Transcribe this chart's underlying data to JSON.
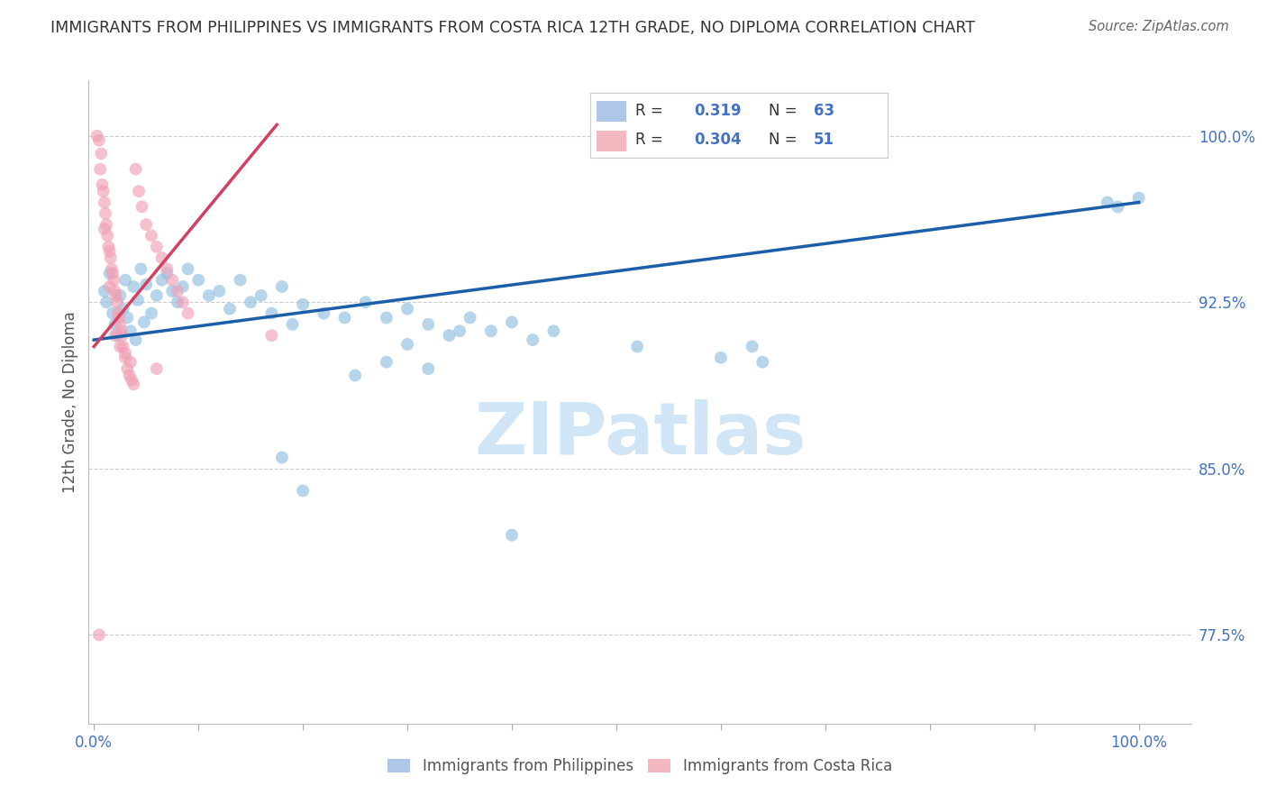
{
  "title": "IMMIGRANTS FROM PHILIPPINES VS IMMIGRANTS FROM COSTA RICA 12TH GRADE, NO DIPLOMA CORRELATION CHART",
  "source": "Source: ZipAtlas.com",
  "ylabel": "12th Grade, No Diploma",
  "ytick_vals": [
    0.775,
    0.85,
    0.925,
    1.0
  ],
  "ytick_labels": [
    "77.5%",
    "85.0%",
    "92.5%",
    "100.0%"
  ],
  "legend_entries": [
    {
      "label": "Immigrants from Philippines",
      "color": "#aec6e8",
      "R": "0.319",
      "N": "63"
    },
    {
      "label": "Immigrants from Costa Rica",
      "color": "#f4b8c1",
      "R": "0.304",
      "N": "51"
    }
  ],
  "blue_scatter_x": [
    0.01,
    0.012,
    0.015,
    0.018,
    0.02,
    0.022,
    0.025,
    0.028,
    0.03,
    0.032,
    0.035,
    0.038,
    0.04,
    0.042,
    0.045,
    0.048,
    0.05,
    0.055,
    0.06,
    0.065,
    0.07,
    0.075,
    0.08,
    0.085,
    0.09,
    0.1,
    0.11,
    0.12,
    0.13,
    0.14,
    0.15,
    0.16,
    0.17,
    0.18,
    0.19,
    0.2,
    0.22,
    0.24,
    0.26,
    0.28,
    0.3,
    0.32,
    0.34,
    0.36,
    0.38,
    0.4,
    0.42,
    0.44,
    0.3,
    0.35,
    0.32,
    0.28,
    0.25,
    0.52,
    0.6,
    0.63,
    0.64,
    0.97,
    0.98,
    1.0,
    0.18,
    0.2,
    0.4
  ],
  "blue_scatter_y": [
    0.93,
    0.925,
    0.938,
    0.92,
    0.915,
    0.91,
    0.928,
    0.922,
    0.935,
    0.918,
    0.912,
    0.932,
    0.908,
    0.926,
    0.94,
    0.916,
    0.933,
    0.92,
    0.928,
    0.935,
    0.938,
    0.93,
    0.925,
    0.932,
    0.94,
    0.935,
    0.928,
    0.93,
    0.922,
    0.935,
    0.925,
    0.928,
    0.92,
    0.932,
    0.915,
    0.924,
    0.92,
    0.918,
    0.925,
    0.918,
    0.922,
    0.915,
    0.91,
    0.918,
    0.912,
    0.916,
    0.908,
    0.912,
    0.906,
    0.912,
    0.895,
    0.898,
    0.892,
    0.905,
    0.9,
    0.905,
    0.898,
    0.97,
    0.968,
    0.972,
    0.855,
    0.84,
    0.82
  ],
  "pink_scatter_x": [
    0.003,
    0.005,
    0.006,
    0.007,
    0.008,
    0.009,
    0.01,
    0.011,
    0.012,
    0.013,
    0.014,
    0.015,
    0.016,
    0.017,
    0.018,
    0.019,
    0.02,
    0.021,
    0.022,
    0.023,
    0.024,
    0.025,
    0.026,
    0.027,
    0.028,
    0.03,
    0.032,
    0.034,
    0.036,
    0.038,
    0.04,
    0.043,
    0.046,
    0.05,
    0.055,
    0.06,
    0.065,
    0.07,
    0.075,
    0.08,
    0.085,
    0.09,
    0.01,
    0.015,
    0.02,
    0.025,
    0.03,
    0.035,
    0.06,
    0.17,
    0.005
  ],
  "pink_scatter_y": [
    1.0,
    0.998,
    0.985,
    0.992,
    0.978,
    0.975,
    0.97,
    0.965,
    0.96,
    0.955,
    0.95,
    0.948,
    0.945,
    0.94,
    0.938,
    0.935,
    0.93,
    0.928,
    0.925,
    0.92,
    0.918,
    0.915,
    0.912,
    0.91,
    0.905,
    0.9,
    0.895,
    0.892,
    0.89,
    0.888,
    0.985,
    0.975,
    0.968,
    0.96,
    0.955,
    0.95,
    0.945,
    0.94,
    0.935,
    0.93,
    0.925,
    0.92,
    0.958,
    0.932,
    0.91,
    0.905,
    0.902,
    0.898,
    0.895,
    0.91,
    0.775
  ],
  "blue_line_x": [
    0.0,
    1.0
  ],
  "blue_line_y": [
    0.908,
    0.97
  ],
  "pink_line_x": [
    0.0,
    0.175
  ],
  "pink_line_y": [
    0.905,
    1.005
  ],
  "scatter_size": 100,
  "scatter_alpha": 0.65,
  "blue_color": "#90bde0",
  "pink_color": "#f0a0b5",
  "blue_line_color": "#1a5fa8",
  "pink_line_color": "#d44060",
  "watermark_text": "ZIPatlas",
  "watermark_color": "#d0e5f5",
  "grid_color": "#cccccc",
  "title_color": "#333333",
  "axis_label_color": "#4472c4",
  "ymin": 0.735,
  "ymax": 1.025,
  "xmin": -0.005,
  "xmax": 1.05
}
